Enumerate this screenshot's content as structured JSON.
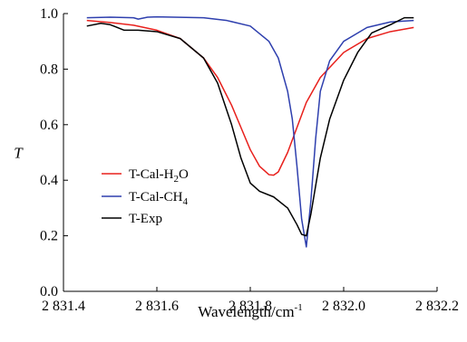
{
  "chart_data": {
    "type": "line",
    "xlabel": "Wavelength/cm",
    "xlabel_sup": "-1",
    "ylabel": "T",
    "xlim": [
      2831.4,
      2832.2
    ],
    "ylim": [
      0.0,
      1.0
    ],
    "xticks": [
      2831.4,
      2831.6,
      2831.8,
      2832.0,
      2832.2
    ],
    "xtick_labels": [
      "2 831.4",
      "2 831.6",
      "2 831.8",
      "2 832.0",
      "2 832.2"
    ],
    "yticks": [
      0.0,
      0.2,
      0.4,
      0.6,
      0.8,
      1.0
    ],
    "ytick_labels": [
      "0.0",
      "0.2",
      "0.4",
      "0.6",
      "0.8",
      "1.0"
    ],
    "grid": false,
    "legend_position": "lower-left",
    "series": [
      {
        "name": "T-Cal-H2O",
        "legend": {
          "base": "T-Cal-H",
          "sub": "2",
          "tail": "O"
        },
        "color": "#e8201c",
        "x": [
          2831.45,
          2831.5,
          2831.55,
          2831.6,
          2831.65,
          2831.7,
          2831.73,
          2831.76,
          2831.78,
          2831.8,
          2831.82,
          2831.84,
          2831.85,
          2831.86,
          2831.88,
          2831.9,
          2831.92,
          2831.95,
          2832.0,
          2832.05,
          2832.1,
          2832.15
        ],
        "y": [
          0.975,
          0.968,
          0.958,
          0.94,
          0.91,
          0.84,
          0.77,
          0.67,
          0.59,
          0.51,
          0.45,
          0.42,
          0.418,
          0.43,
          0.5,
          0.59,
          0.68,
          0.77,
          0.86,
          0.91,
          0.935,
          0.95
        ]
      },
      {
        "name": "T-Cal-CH4",
        "legend": {
          "base": "T-Cal-CH",
          "sub": "4",
          "tail": ""
        },
        "color": "#2e3fae",
        "x": [
          2831.45,
          2831.5,
          2831.55,
          2831.56,
          2831.58,
          2831.6,
          2831.7,
          2831.75,
          2831.8,
          2831.84,
          2831.86,
          2831.88,
          2831.89,
          2831.9,
          2831.91,
          2831.92,
          2831.93,
          2831.94,
          2831.95,
          2831.97,
          2832.0,
          2832.05,
          2832.1,
          2832.15
        ],
        "y": [
          0.985,
          0.987,
          0.985,
          0.98,
          0.987,
          0.988,
          0.985,
          0.975,
          0.955,
          0.9,
          0.84,
          0.72,
          0.62,
          0.45,
          0.26,
          0.16,
          0.33,
          0.55,
          0.72,
          0.83,
          0.9,
          0.95,
          0.97,
          0.975
        ]
      },
      {
        "name": "T-Exp",
        "legend": {
          "base": "T-Exp",
          "sub": "",
          "tail": ""
        },
        "color": "#000000",
        "x": [
          2831.45,
          2831.48,
          2831.5,
          2831.53,
          2831.56,
          2831.6,
          2831.65,
          2831.7,
          2831.73,
          2831.76,
          2831.78,
          2831.8,
          2831.82,
          2831.85,
          2831.88,
          2831.9,
          2831.91,
          2831.92,
          2831.93,
          2831.95,
          2831.97,
          2832.0,
          2832.03,
          2832.06,
          2832.1,
          2832.13,
          2832.15
        ],
        "y": [
          0.955,
          0.965,
          0.96,
          0.94,
          0.94,
          0.935,
          0.91,
          0.84,
          0.75,
          0.6,
          0.48,
          0.39,
          0.36,
          0.34,
          0.3,
          0.24,
          0.205,
          0.2,
          0.28,
          0.48,
          0.62,
          0.76,
          0.86,
          0.93,
          0.96,
          0.985,
          0.985
        ]
      }
    ]
  }
}
